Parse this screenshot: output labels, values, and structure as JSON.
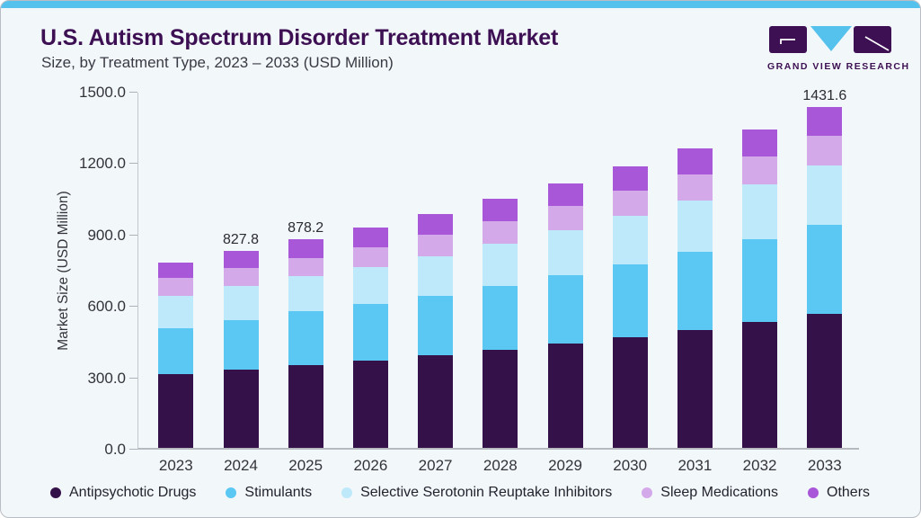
{
  "card": {
    "title": "U.S. Autism Spectrum Disorder Treatment Market",
    "subtitle": "Size, by Treatment Type, 2023 – 2033 (USD Million)"
  },
  "logo": {
    "wordmark": "GRAND VIEW RESEARCH",
    "block_color": "#3D1053",
    "triangle_color": "#55C1ED"
  },
  "chart_data": {
    "type": "bar",
    "stacked": true,
    "title": "U.S. Autism Spectrum Disorder Treatment Market Size, by Treatment Type, 2023 – 2033 (USD Million)",
    "xlabel": "",
    "ylabel": "Market Size (USD Million)",
    "ylim": [
      0,
      1500
    ],
    "ytick_labels": [
      "0.0",
      "300.0",
      "600.0",
      "900.0",
      "1200.0",
      "1500.0"
    ],
    "ytick_values": [
      0,
      300,
      600,
      900,
      1200,
      1500
    ],
    "grid": false,
    "legend_position": "bottom",
    "categories": [
      "2023",
      "2024",
      "2025",
      "2026",
      "2027",
      "2028",
      "2029",
      "2030",
      "2031",
      "2032",
      "2033"
    ],
    "series": [
      {
        "name": "Antipsychotic Drugs",
        "color": "#341148",
        "values": [
          310,
          328,
          346,
          366,
          388,
          413,
          438,
          466,
          496,
          528,
          563
        ]
      },
      {
        "name": "Stimulants",
        "color": "#5BC8F4",
        "values": [
          193,
          209,
          229,
          238,
          252,
          268,
          288,
          306,
          326,
          348,
          375
        ]
      },
      {
        "name": "Selective Serotonin Reuptake Inhibitors",
        "color": "#BEE9FB",
        "values": [
          137,
          144,
          148,
          156,
          166,
          177,
          190,
          203,
          216,
          230,
          248
        ]
      },
      {
        "name": "Sleep Medications",
        "color": "#D3A9EA",
        "values": [
          73,
          73,
          76,
          83,
          88,
          94,
          99,
          105,
          112,
          118,
          125
        ]
      },
      {
        "name": "Others",
        "color": "#A757D8",
        "values": [
          67,
          73.8,
          79.2,
          83,
          88,
          93,
          96,
          102,
          108,
          114,
          120.6
        ]
      }
    ],
    "totals": [
      780,
      827.8,
      878.2,
      926,
      982,
      1045,
      1111,
      1182,
      1258,
      1338,
      1431.6
    ],
    "bar_labels": [
      null,
      "827.8",
      "878.2",
      null,
      null,
      null,
      null,
      null,
      null,
      null,
      "1431.6"
    ]
  }
}
